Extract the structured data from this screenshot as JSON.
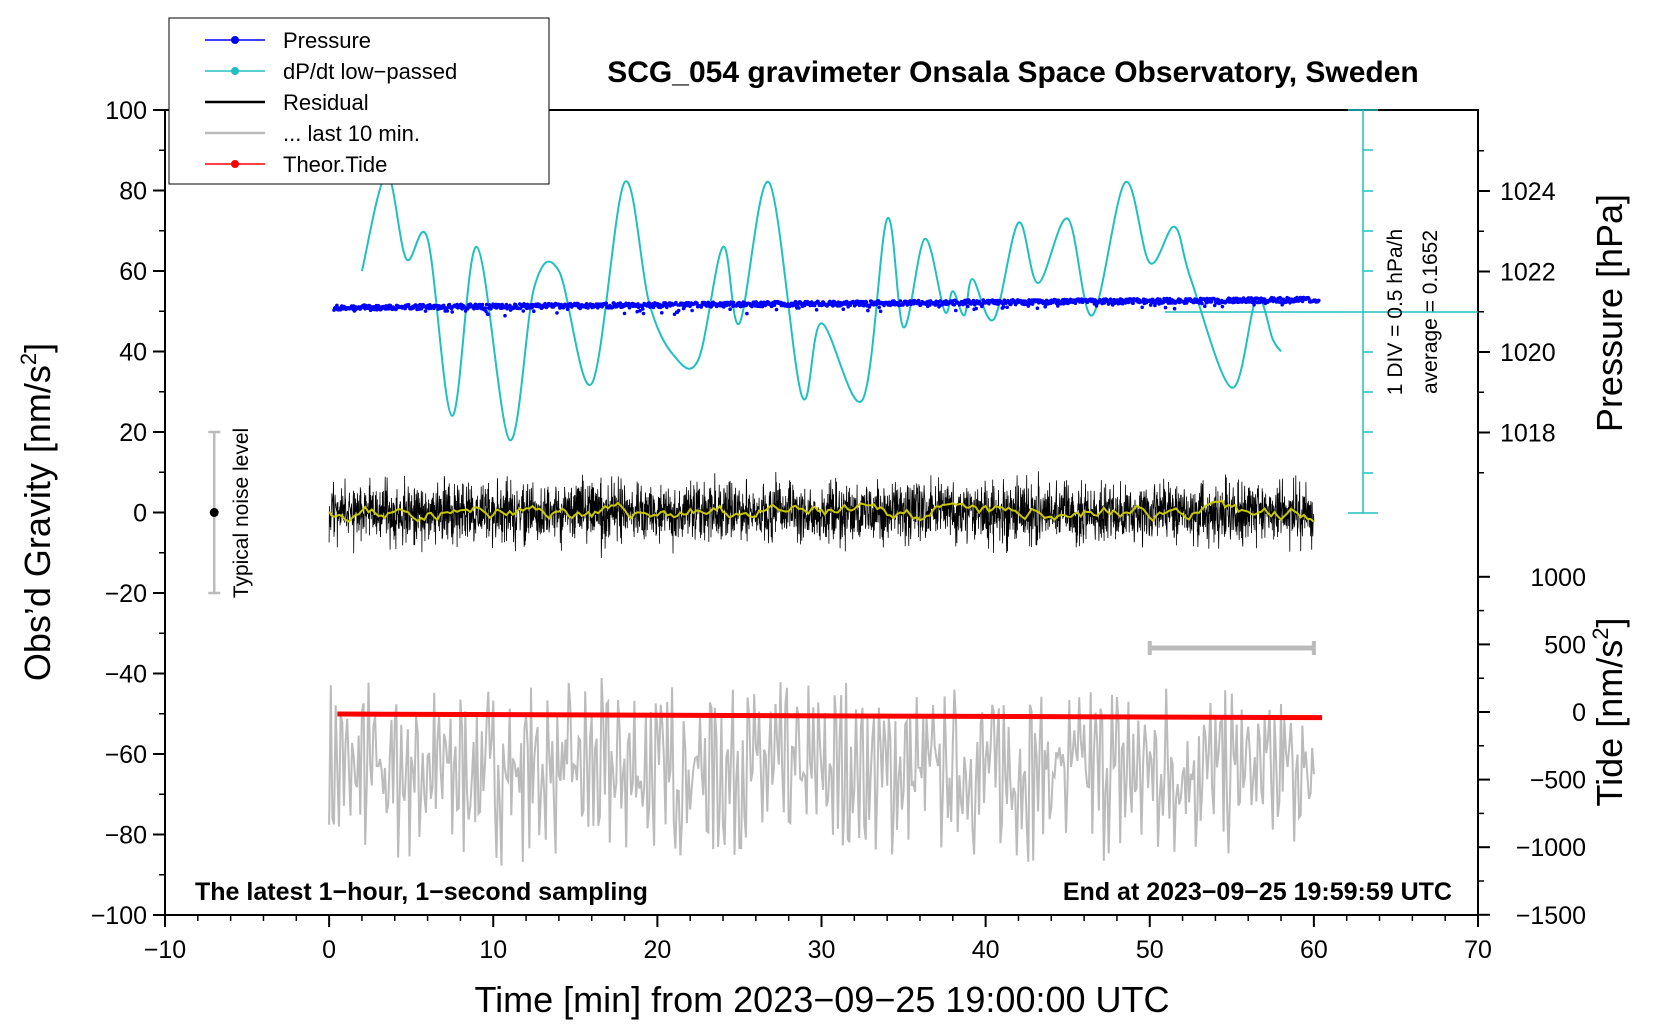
{
  "chart_data": {
    "type": "line",
    "title": "SCG_054 gravimeter Onsala Space Observatory, Sweden",
    "xlabel": "Time [min] from 2023−09−25 19:00:00 UTC",
    "ylabel_left": "Obs’d Gravity [nm/s",
    "ylabel_left_sup": "2",
    "ylabel_left_end": "]",
    "ylabel_right_top": "Pressure [hPa]",
    "ylabel_right_bottom": "Tide [nm/s",
    "ylabel_right_bottom_sup": "2",
    "ylabel_right_bottom_end": "]",
    "xlim": [
      -10,
      70
    ],
    "ylim": [
      -100,
      100
    ],
    "pressure_axis_range": [
      1016,
      1026
    ],
    "tide_axis_range": [
      -1500,
      1000
    ],
    "x_ticks": [
      "−10",
      "0",
      "10",
      "20",
      "30",
      "40",
      "50",
      "60",
      "70"
    ],
    "y_ticks": [
      "−100",
      "−80",
      "−60",
      "−40",
      "−20",
      "0",
      "20",
      "40",
      "60",
      "80",
      "100"
    ],
    "pressure_ticks": [
      "1018",
      "1020",
      "1022",
      "1024"
    ],
    "tide_ticks": [
      "1000",
      "500",
      "0",
      "−500",
      "−1000",
      "−1500"
    ],
    "legend": [
      {
        "label": "Pressure",
        "color": "#0000ff",
        "marker": true
      },
      {
        "label": "dP/dt low−passed",
        "color": "#20c0c0",
        "marker": true
      },
      {
        "label": "Residual",
        "color": "#000000",
        "marker": false
      },
      {
        "label": "... last 10 min.",
        "color": "#bbbbbb",
        "marker": false
      },
      {
        "label": "Theor.Tide",
        "color": "#ff0000",
        "marker": true
      }
    ],
    "annotations": {
      "noise": "Typical noise level",
      "dpdt_scale": "1 DIV = 0.5 hPa/h",
      "dpdt_average": "average = 0.1652",
      "bottom_left": "The latest 1−hour, 1−second sampling",
      "bottom_right": "End at 2023−09−25 19:59:59 UTC"
    },
    "noise_bar": {
      "x": -7,
      "center": 0,
      "low": -20,
      "high": 20
    },
    "last10_bracket": {
      "x_start": 50,
      "x_end": 60
    },
    "series": [
      {
        "name": "Pressure",
        "unit": "hPa",
        "x_range": [
          0.3,
          60.3
        ],
        "start": 1021.1,
        "end": 1021.3,
        "noise": 0.2
      },
      {
        "name": "dP/dt low-passed",
        "unit": "nm/s2 display",
        "x": [
          2,
          3.5,
          4.7,
          6,
          7.5,
          9,
          11,
          12.5,
          14,
          16,
          18,
          19.5,
          21,
          22.5,
          24,
          25,
          26.8,
          28.8,
          30,
          32.5,
          34,
          35,
          36.3,
          37.5,
          38,
          38.7,
          39.2,
          40.5,
          42,
          43.2,
          45,
          46.5,
          48.5,
          50,
          51.5,
          52.5,
          55,
          56.5,
          57.5,
          58
        ],
        "values": [
          60,
          84,
          63,
          68,
          24,
          66,
          18,
          56,
          60,
          32,
          82,
          52,
          39,
          38,
          66,
          47,
          82,
          29,
          47,
          28,
          73,
          46,
          68,
          50,
          55,
          49,
          58,
          48,
          72,
          57,
          73,
          49,
          82,
          62,
          71,
          58,
          31,
          53,
          43,
          40
        ]
      },
      {
        "name": "Residual",
        "unit": "nm/s2",
        "x_range": [
          0,
          60
        ],
        "center": 0,
        "amplitude": 12
      },
      {
        "name": "Residual smoothed",
        "unit": "nm/s2",
        "x_range": [
          0,
          60
        ],
        "center": 0,
        "amplitude": 1
      },
      {
        "name": "Last 10 min",
        "unit": "nm/s2",
        "x_range": [
          0,
          60
        ],
        "center": -64,
        "amplitude": 17
      },
      {
        "name": "Theor.Tide",
        "unit": "nm/s2",
        "x": [
          0.5,
          60.5
        ],
        "values": [
          -15,
          -42
        ]
      }
    ]
  }
}
